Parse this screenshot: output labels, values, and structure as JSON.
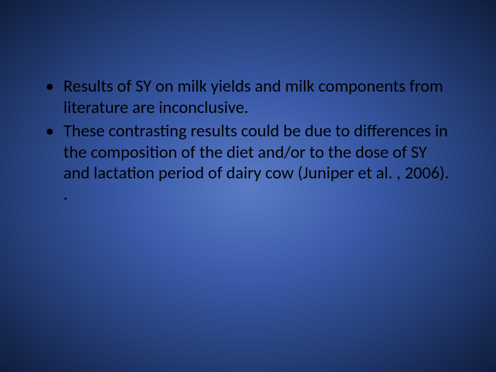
{
  "slide": {
    "background": {
      "type": "radial-gradient",
      "center_color": "#5a7bc4",
      "mid_color": "#3a5aa8",
      "outer_color": "#26407a",
      "edge_color": "#0f1d3d"
    },
    "text_color": "#000000",
    "font_family": "Calibri",
    "bullet_fontsize": 25,
    "bullets": [
      "Results of SY on milk yields and milk components from literature are inconclusive.",
      " These contrasting results could be due to differences in the composition of the diet and/or to the dose of SY and lactation period of dairy cow (Juniper et al. , 2006). ."
    ]
  }
}
